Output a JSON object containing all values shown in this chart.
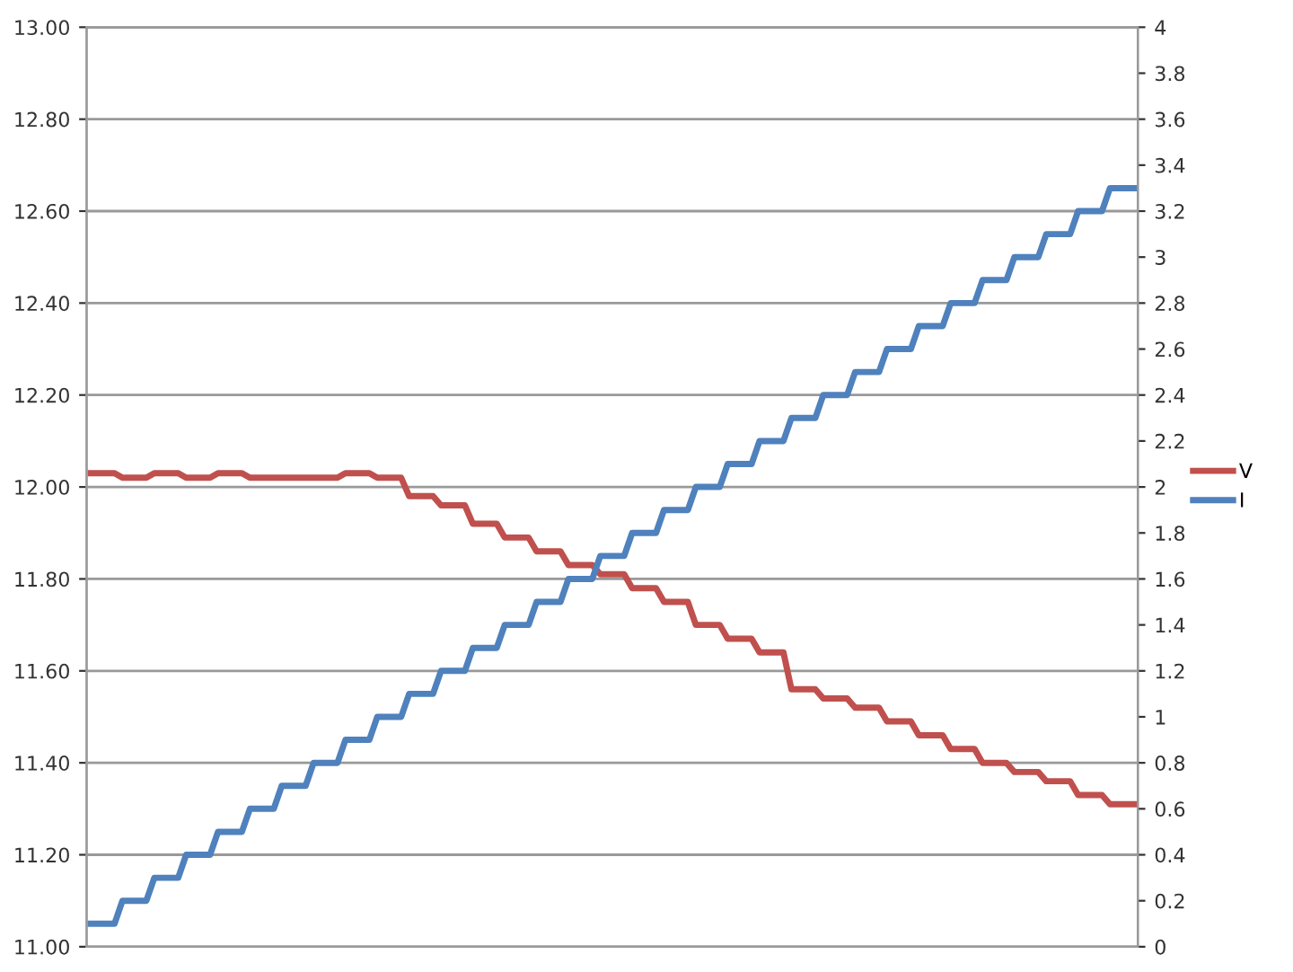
{
  "chart_data": {
    "type": "line",
    "categories": [
      null,
      null,
      null,
      null,
      null,
      null,
      null,
      null,
      null,
      null,
      null,
      null,
      null,
      null,
      null,
      null,
      null,
      null,
      null,
      null,
      null,
      null,
      null,
      null,
      null,
      null,
      null,
      null,
      null,
      null,
      null,
      null,
      null,
      null,
      null,
      null,
      null,
      null,
      null,
      null,
      null,
      null,
      null,
      null,
      null,
      null,
      null,
      null,
      null,
      null,
      null,
      null,
      null,
      null,
      null,
      null,
      null,
      null,
      null,
      null,
      null,
      null,
      null,
      null,
      null,
      null,
      null,
      null,
      null,
      null,
      null,
      null,
      null,
      null,
      null,
      null,
      null,
      null,
      null,
      null,
      null,
      null,
      null,
      null,
      null,
      null,
      null,
      null,
      null,
      null,
      null,
      null,
      null,
      null,
      null,
      null,
      null,
      null,
      null,
      null,
      null,
      null,
      null,
      null,
      null,
      null,
      null,
      null,
      null,
      null,
      null,
      null,
      null,
      null,
      null,
      null,
      null,
      null,
      null,
      null,
      null,
      null,
      null,
      null,
      null,
      null,
      null,
      null,
      null,
      null,
      null,
      null
    ],
    "series": [
      {
        "name": "V",
        "color": "#c0504d",
        "values": [
          12.03,
          12.03,
          12.03,
          12.03,
          12.02,
          12.02,
          12.02,
          12.02,
          12.03,
          12.03,
          12.03,
          12.03,
          12.02,
          12.02,
          12.02,
          12.02,
          12.03,
          12.03,
          12.03,
          12.03,
          12.02,
          12.02,
          12.02,
          12.02,
          12.02,
          12.02,
          12.02,
          12.02,
          12.02,
          12.02,
          12.02,
          12.02,
          12.03,
          12.03,
          12.03,
          12.03,
          12.02,
          12.02,
          12.02,
          12.02,
          11.98,
          11.98,
          11.98,
          11.98,
          11.96,
          11.96,
          11.96,
          11.96,
          11.92,
          11.92,
          11.92,
          11.92,
          11.89,
          11.89,
          11.89,
          11.89,
          11.86,
          11.86,
          11.86,
          11.86,
          11.83,
          11.83,
          11.83,
          11.83,
          11.81,
          11.81,
          11.81,
          11.81,
          11.78,
          11.78,
          11.78,
          11.78,
          11.75,
          11.75,
          11.75,
          11.75,
          11.7,
          11.7,
          11.7,
          11.7,
          11.67,
          11.67,
          11.67,
          11.67,
          11.64,
          11.64,
          11.64,
          11.64,
          11.56,
          11.56,
          11.56,
          11.56,
          11.54,
          11.54,
          11.54,
          11.54,
          11.52,
          11.52,
          11.52,
          11.52,
          11.49,
          11.49,
          11.49,
          11.49,
          11.46,
          11.46,
          11.46,
          11.46,
          11.43,
          11.43,
          11.43,
          11.43,
          11.4,
          11.4,
          11.4,
          11.4,
          11.38,
          11.38,
          11.38,
          11.38,
          11.36,
          11.36,
          11.36,
          11.36,
          11.33,
          11.33,
          11.33,
          11.33,
          11.31,
          11.31,
          11.31,
          11.31
        ]
      },
      {
        "name": "I",
        "color": "#4f81bd",
        "axis": "y2",
        "values": [
          0.1,
          0.1,
          0.1,
          0.1,
          0.2,
          0.2,
          0.2,
          0.2,
          0.3,
          0.3,
          0.3,
          0.3,
          0.4,
          0.4,
          0.4,
          0.4,
          0.5,
          0.5,
          0.5,
          0.5,
          0.6,
          0.6,
          0.6,
          0.6,
          0.7,
          0.7,
          0.7,
          0.7,
          0.8,
          0.8,
          0.8,
          0.8,
          0.9,
          0.9,
          0.9,
          0.9,
          1.0,
          1.0,
          1.0,
          1.0,
          1.1,
          1.1,
          1.1,
          1.1,
          1.2,
          1.2,
          1.2,
          1.2,
          1.3,
          1.3,
          1.3,
          1.3,
          1.4,
          1.4,
          1.4,
          1.4,
          1.5,
          1.5,
          1.5,
          1.5,
          1.6,
          1.6,
          1.6,
          1.6,
          1.7,
          1.7,
          1.7,
          1.7,
          1.8,
          1.8,
          1.8,
          1.8,
          1.9,
          1.9,
          1.9,
          1.9,
          2.0,
          2.0,
          2.0,
          2.0,
          2.1,
          2.1,
          2.1,
          2.1,
          2.2,
          2.2,
          2.2,
          2.2,
          2.3,
          2.3,
          2.3,
          2.3,
          2.4,
          2.4,
          2.4,
          2.4,
          2.5,
          2.5,
          2.5,
          2.5,
          2.6,
          2.6,
          2.6,
          2.6,
          2.7,
          2.7,
          2.7,
          2.7,
          2.8,
          2.8,
          2.8,
          2.8,
          2.9,
          2.9,
          2.9,
          2.9,
          3.0,
          3.0,
          3.0,
          3.0,
          3.1,
          3.1,
          3.1,
          3.1,
          3.2,
          3.2,
          3.2,
          3.2,
          3.3,
          3.3,
          3.3,
          3.3
        ]
      }
    ],
    "ylim": [
      11,
      13
    ],
    "yticks": [
      {
        "value": 11,
        "label": "11.00"
      },
      {
        "value": 11.2,
        "label": "11.20"
      },
      {
        "value": 11.4,
        "label": "11.40"
      },
      {
        "value": 11.6,
        "label": "11.60"
      },
      {
        "value": 11.8,
        "label": "11.80"
      },
      {
        "value": 12,
        "label": "12.00"
      },
      {
        "value": 12.2,
        "label": "12.20"
      },
      {
        "value": 12.4,
        "label": "12.40"
      },
      {
        "value": 12.6,
        "label": "12.60"
      },
      {
        "value": 12.8,
        "label": "12.80"
      },
      {
        "value": 13,
        "label": "13.00"
      }
    ],
    "y2lim": [
      0,
      4
    ],
    "y2ticks": [
      0,
      0.2,
      0.4,
      0.6,
      0.8,
      1,
      1.2,
      1.4,
      1.6,
      1.8,
      2,
      2.2,
      2.4,
      2.6,
      2.8,
      3,
      3.2,
      3.4,
      3.6,
      3.8,
      4
    ],
    "grid": "y",
    "legend": "right",
    "marker": "none",
    "line_style": "solid"
  }
}
